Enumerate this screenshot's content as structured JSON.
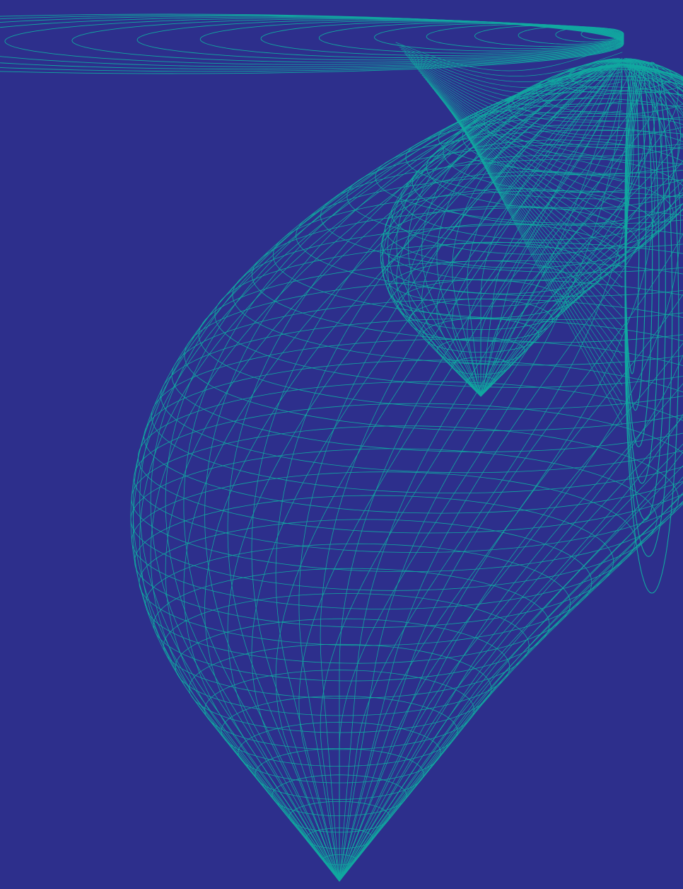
{
  "artwork": {
    "subject": "",
    "background_color": "#2d2f8c",
    "line_color": "#11a8a0"
  }
}
